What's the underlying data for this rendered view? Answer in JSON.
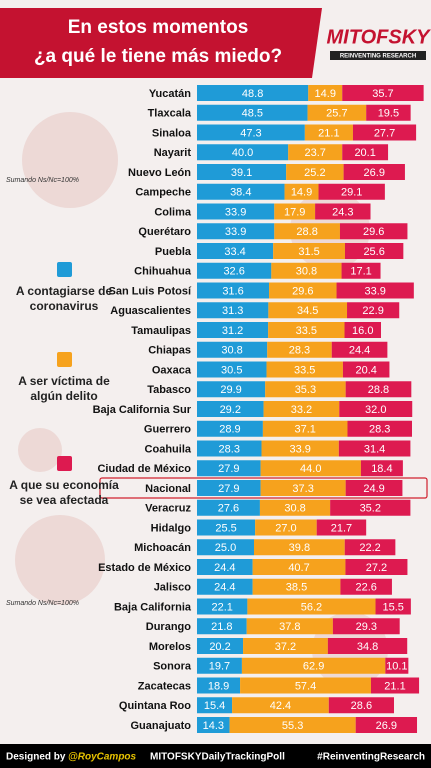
{
  "header": {
    "title_lines": [
      "En estos momentos",
      "¿a qué le tiene más miedo?"
    ],
    "logo": "MITOFSKY",
    "logo_tagline": "REINVENTING RESEARCH"
  },
  "notes": [
    "Sumando Ns/Nc=100%",
    "Sumando Ns/Nc=100%"
  ],
  "footer": {
    "designed_by": "Designed by",
    "handle": "@RoyCampos",
    "poll": "MITOFSKYDailyTrackingPoll",
    "hashtag": "#ReinventingResearch"
  },
  "chart_data": {
    "type": "stacked-bar-horizontal",
    "xlim": [
      0,
      100
    ],
    "highlight_index": 20,
    "categories": [
      "Yucatán",
      "Tlaxcala",
      "Sinaloa",
      "Nayarit",
      "Nuevo León",
      "Campeche",
      "Colima",
      "Querétaro",
      "Puebla",
      "Chihuahua",
      "San Luis Potosí",
      "Aguascalientes",
      "Tamaulipas",
      "Chiapas",
      "Oaxaca",
      "Tabasco",
      "Baja California Sur",
      "Guerrero",
      "Coahuila",
      "Ciudad de México",
      "Nacional",
      "Veracruz",
      "Hidalgo",
      "Michoacán",
      "Estado de México",
      "Jalisco",
      "Baja California",
      "Durango",
      "Morelos",
      "Sonora",
      "Zacatecas",
      "Quintana Roo",
      "Guanajuato"
    ],
    "series": [
      {
        "name": "A contagiarse de coronavirus",
        "color": "#1f9bd7",
        "values": [
          48.8,
          48.5,
          47.3,
          40,
          39.1,
          38.4,
          33.9,
          33.9,
          33.4,
          32.6,
          31.6,
          31.3,
          31.2,
          30.8,
          30.5,
          29.9,
          29.2,
          28.9,
          28.3,
          27.9,
          27.9,
          27.6,
          25.5,
          25,
          24.4,
          24.4,
          22.1,
          21.8,
          20.2,
          19.7,
          18.9,
          15.4,
          14.3
        ],
        "value_labels": [
          "48.8",
          "48.5",
          "47.3",
          "40.0",
          "39.1",
          "38.4",
          "33.9",
          "33.9",
          "33.4",
          "32.6",
          "31.6",
          "31.3",
          "31.2",
          "30.8",
          "30.5",
          "29.9",
          "29.2",
          "28.9",
          "28.3",
          "27.9",
          "27.9",
          "27.6",
          "25.5",
          "25.0",
          "24.4",
          "24.4",
          "22.1",
          "21.8",
          "20.2",
          "19.7",
          "18.9",
          "15.4",
          "14.3"
        ]
      },
      {
        "name": "A ser víctima de algún delito",
        "color": "#f6a21d",
        "values": [
          14.9,
          25.7,
          21.1,
          23.7,
          25.2,
          14.9,
          17.9,
          28.8,
          31.5,
          30.8,
          29.6,
          34.5,
          33.5,
          28.3,
          33.5,
          35.3,
          33.2,
          37.1,
          33.9,
          44,
          37.3,
          30.8,
          27,
          39.8,
          40.7,
          38.5,
          56.2,
          37.8,
          37.2,
          62.9,
          57.4,
          42.4,
          55.3
        ],
        "value_labels": [
          "14.9",
          "25.7",
          "21.1",
          "23.7",
          "25.2",
          "14.9",
          "17.9",
          "28.8",
          "31.5",
          "30.8",
          "29.6",
          "34.5",
          "33.5",
          "28.3",
          "33.5",
          "35.3",
          "33.2",
          "37.1",
          "33.9",
          "44.0",
          "37.3",
          "30.8",
          "27.0",
          "39.8",
          "40.7",
          "38.5",
          "56.2",
          "37.8",
          "37.2",
          "62.9",
          "57.4",
          "42.4",
          "55.3"
        ]
      },
      {
        "name": "A que su economía se vea afectada",
        "color": "#dd1a50",
        "values": [
          35.7,
          19.5,
          27.7,
          20.1,
          26.9,
          29.1,
          24.3,
          29.6,
          25.6,
          17.1,
          33.9,
          22.9,
          16,
          24.4,
          20.4,
          28.8,
          32,
          28.3,
          31.4,
          18.4,
          24.9,
          35.2,
          21.7,
          22.2,
          27.2,
          22.6,
          15.5,
          29.3,
          34.8,
          10.1,
          21.1,
          28.6,
          26.9
        ],
        "value_labels": [
          "35.7",
          "19.5",
          "27.7",
          "20.1",
          "26.9",
          "29.1",
          "24.3",
          "29.6",
          "25.6",
          "17.1",
          "33.9",
          "22.9",
          "16.0",
          "24.4",
          "20.4",
          "28.8",
          "32.0",
          "28.3",
          "31.4",
          "18.4",
          "24.9",
          "35.2",
          "21.7",
          "22.2",
          "27.2",
          "22.6",
          "15.5",
          "29.3",
          "34.8",
          "10.1",
          "21.1",
          "28.6",
          "26.9"
        ]
      }
    ]
  }
}
